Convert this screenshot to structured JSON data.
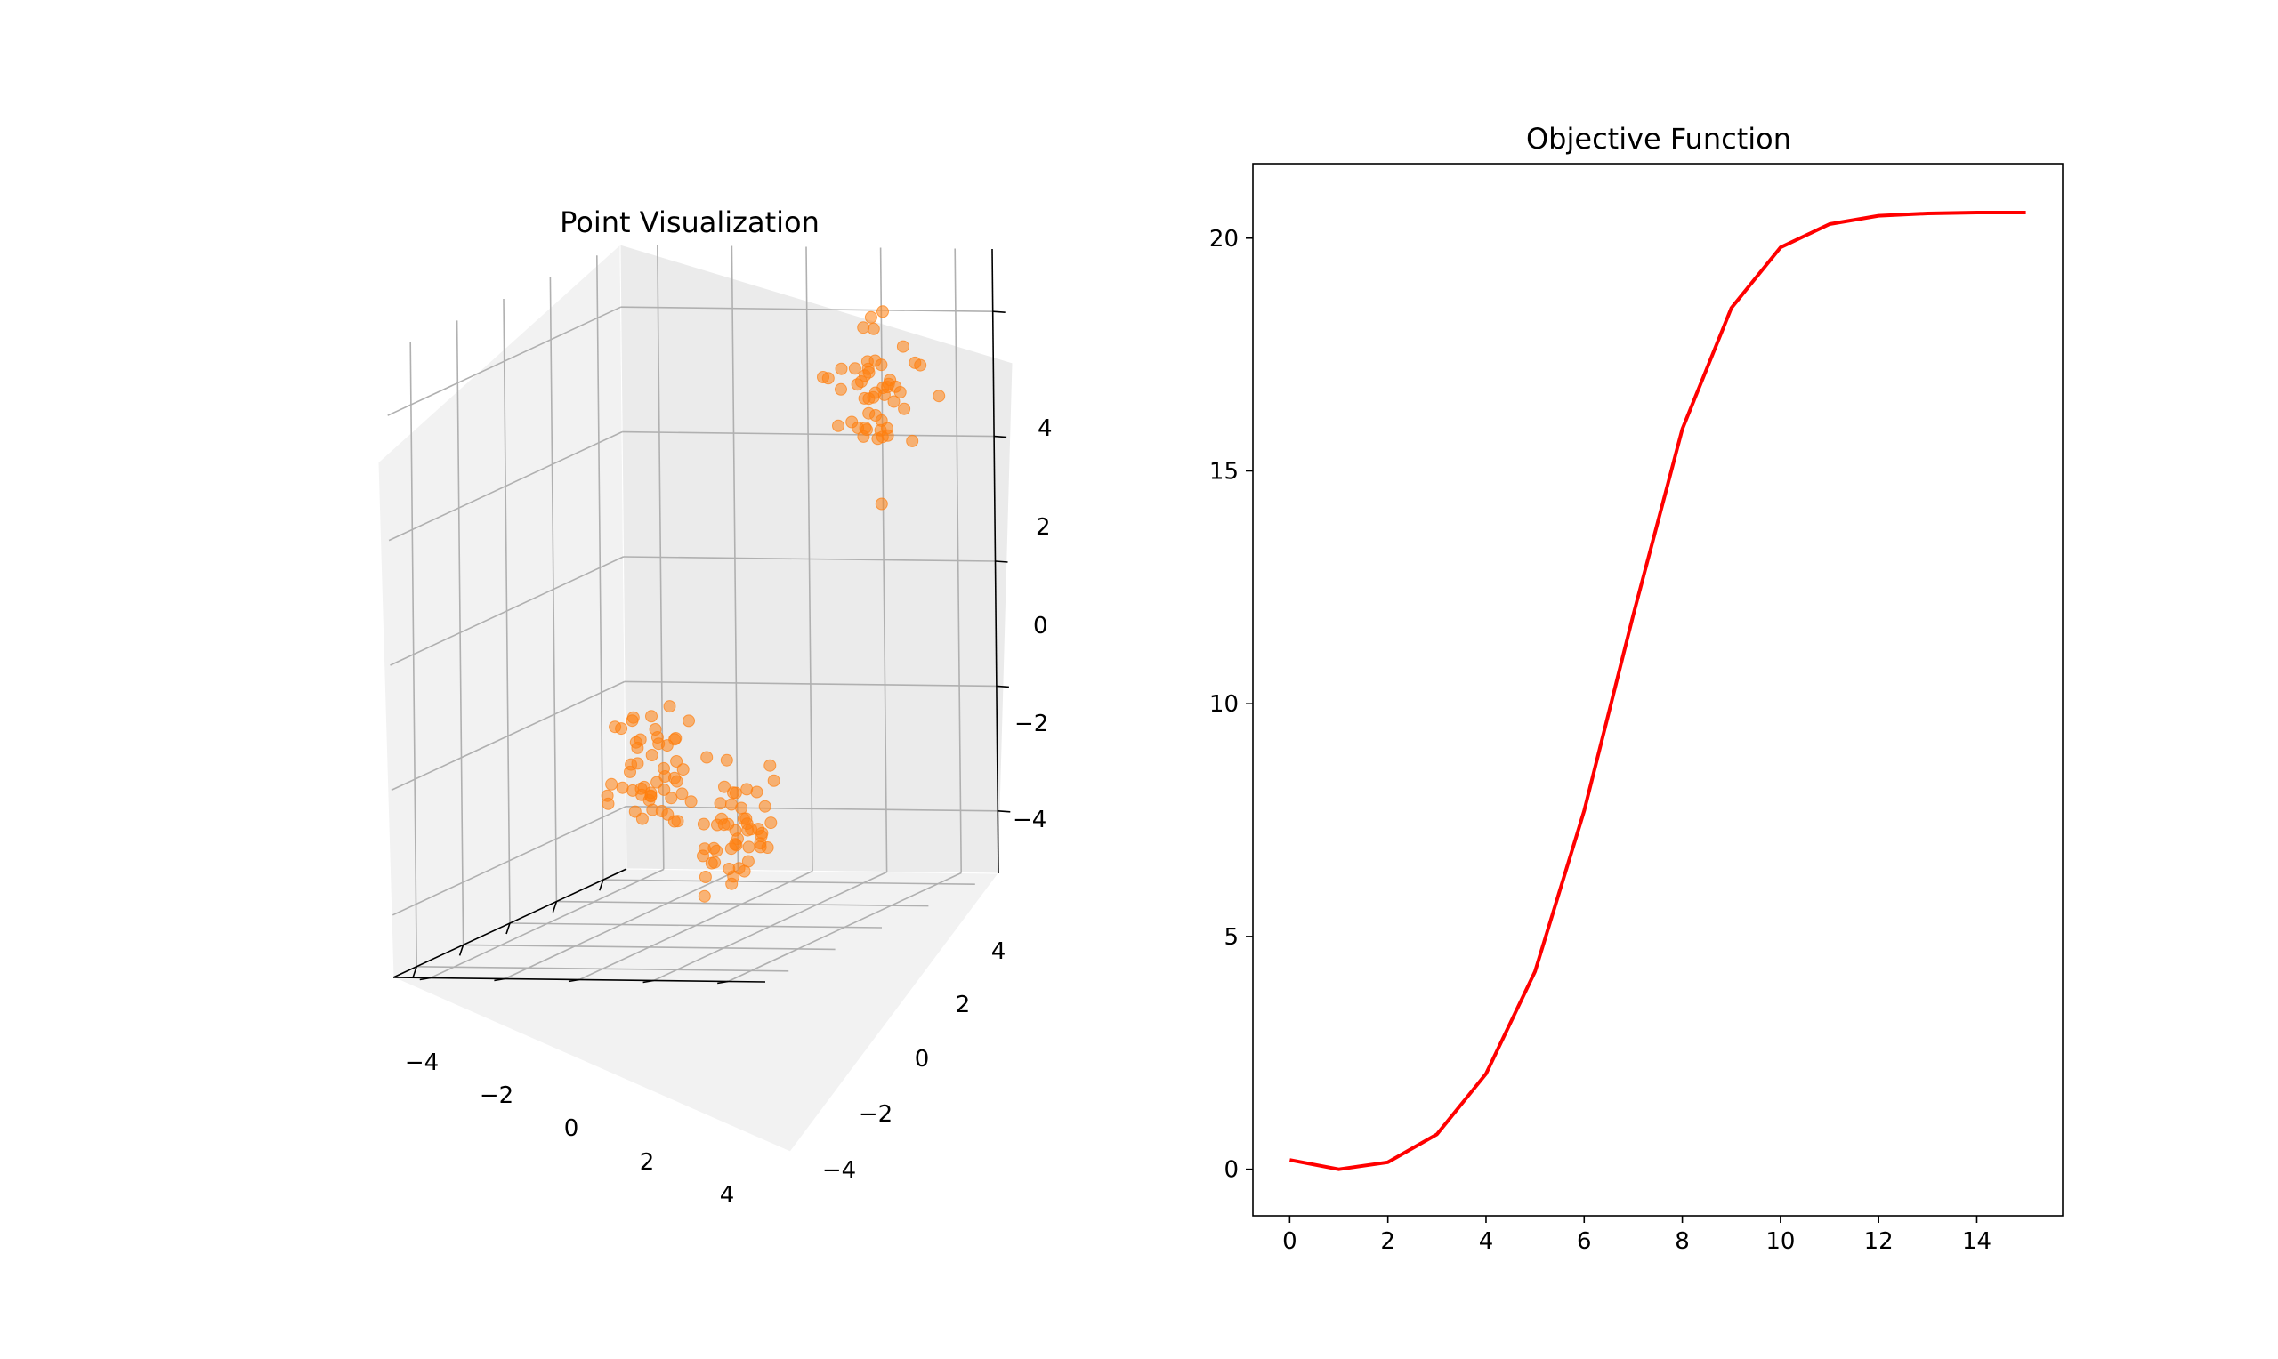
{
  "chart_data": [
    {
      "type": "scatter3d",
      "title": "Point Visualization",
      "xlabel": "",
      "ylabel": "",
      "zlabel": "",
      "xlim": [
        -5,
        5
      ],
      "ylim": [
        -5,
        5
      ],
      "zlim": [
        -5,
        5
      ],
      "xticks": [
        "−4",
        "−2",
        "0",
        "2",
        "4"
      ],
      "yticks": [
        "−4",
        "−2",
        "0",
        "2",
        "4"
      ],
      "zticks": [
        "4",
        "2",
        "0",
        "−2",
        "−4"
      ],
      "grid": true,
      "marker_color": "#ff7f0e",
      "clusters": [
        {
          "center": [
            -3,
            -3,
            -3
          ],
          "count": 50
        },
        {
          "center": [
            3,
            3,
            -3
          ],
          "count": 50
        },
        {
          "center": [
            -3,
            3,
            3
          ],
          "count": 50
        }
      ]
    },
    {
      "type": "line",
      "title": "Objective Function",
      "xlabel": "",
      "ylabel": "",
      "x": [
        0,
        1,
        2,
        3,
        4,
        5,
        6,
        7,
        8,
        9,
        10,
        11,
        12,
        13,
        14,
        15
      ],
      "series": [
        {
          "color": "#ff0000",
          "values": [
            0.2,
            0.0,
            0.15,
            0.75,
            2.05,
            4.25,
            7.7,
            11.9,
            15.9,
            18.5,
            19.8,
            20.3,
            20.48,
            20.53,
            20.55,
            20.55
          ]
        }
      ],
      "xlim": [
        -0.75,
        15.75
      ],
      "ylim": [
        -1.0,
        21.6
      ],
      "xticks": [
        "0",
        "2",
        "4",
        "6",
        "8",
        "10",
        "12",
        "14"
      ],
      "yticks": [
        "0",
        "5",
        "10",
        "15",
        "20"
      ],
      "grid": false
    }
  ]
}
